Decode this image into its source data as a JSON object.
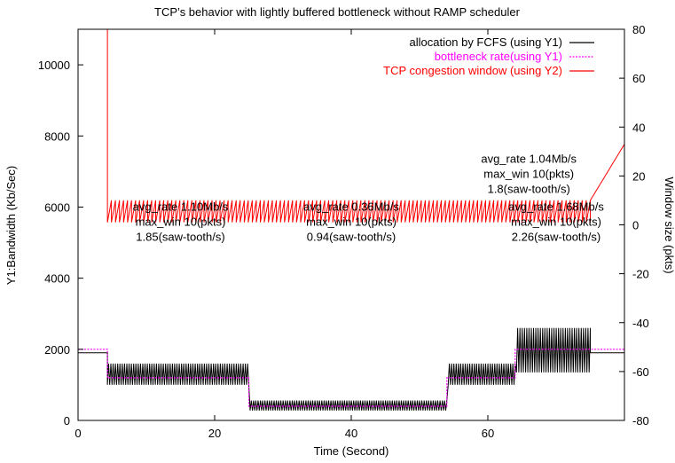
{
  "chart_data": {
    "type": "line",
    "title": "TCP’s behavior with lightly buffered bottleneck without RAMP scheduler",
    "xlabel": "Time (Second)",
    "ylabel": "Y1:Bandwidth (Kb/Sec)",
    "y2label": "Window size (pkts)",
    "xlim": [
      0,
      80
    ],
    "ylim": [
      0,
      11000
    ],
    "y2lim": [
      -80,
      80
    ],
    "x_ticks": [
      0,
      20,
      40,
      60
    ],
    "y_ticks": [
      0,
      2000,
      4000,
      6000,
      8000,
      10000
    ],
    "y2_ticks": [
      -80,
      -60,
      -40,
      -20,
      0,
      20,
      40,
      60,
      80
    ],
    "grid": false,
    "legend_position": "top-right",
    "series": [
      {
        "name": "allocation by FCFS (using Y1)",
        "color": "#000000",
        "axis": "y1",
        "style": "solid",
        "segments": [
          {
            "x0": 0,
            "x1": 4.3,
            "low": 1900,
            "high": 1900
          },
          {
            "x0": 4.3,
            "x1": 25,
            "low": 1000,
            "high": 1600
          },
          {
            "x0": 25.2,
            "x1": 54,
            "low": 280,
            "high": 560
          },
          {
            "x0": 54.2,
            "x1": 64,
            "low": 1000,
            "high": 1600
          },
          {
            "x0": 64.2,
            "x1": 75,
            "low": 1350,
            "high": 2600
          },
          {
            "x0": 75,
            "x1": 80,
            "low": 1900,
            "high": 1900
          }
        ]
      },
      {
        "name": "bottleneck rate(using Y1)",
        "color": "#ff00ff",
        "axis": "y1",
        "style": "dotted",
        "steps": [
          {
            "x0": 0,
            "x1": 4.3,
            "y": 2000
          },
          {
            "x0": 4.3,
            "x1": 25,
            "y": 1200
          },
          {
            "x0": 25,
            "x1": 54,
            "y": 400
          },
          {
            "x0": 54,
            "x1": 64,
            "y": 1200
          },
          {
            "x0": 64,
            "x1": 75,
            "y": 2000
          },
          {
            "x0": 75,
            "x1": 80,
            "y": 2000
          }
        ]
      },
      {
        "name": "TCP congestion window (using Y2)",
        "color": "#ff0000",
        "axis": "y2",
        "style": "solid",
        "initial_spike": {
          "x": 4.3,
          "peak": 80
        },
        "sawtooth": {
          "x0": 4.3,
          "x1": 75,
          "low": 1,
          "high": 10
        },
        "end_ramp": {
          "x0": 75,
          "x1": 80,
          "y0": 10,
          "y1": 33
        }
      }
    ],
    "annotations": [
      {
        "lines": [
          "avg_rate 1.10Mb/s",
          "max_win 10(pkts)",
          "1.85(saw-tooth/s)"
        ],
        "x": 15,
        "y": 6000
      },
      {
        "lines": [
          "avg_rate 0.36Mb/s",
          "max_win 10(pkts)",
          "0.94(saw-tooth/s)"
        ],
        "x": 40,
        "y": 6000
      },
      {
        "lines": [
          "avg_rate 1.68Mb/s",
          "max_win 10(pkts)",
          "2.26(saw-tooth/s)"
        ],
        "x": 70,
        "y": 6000
      },
      {
        "lines": [
          "avg_rate 1.04Mb/s",
          "max_win 10(pkts)",
          "1.8(saw-tooth/s)"
        ],
        "x": 66,
        "y": 7350
      }
    ]
  }
}
